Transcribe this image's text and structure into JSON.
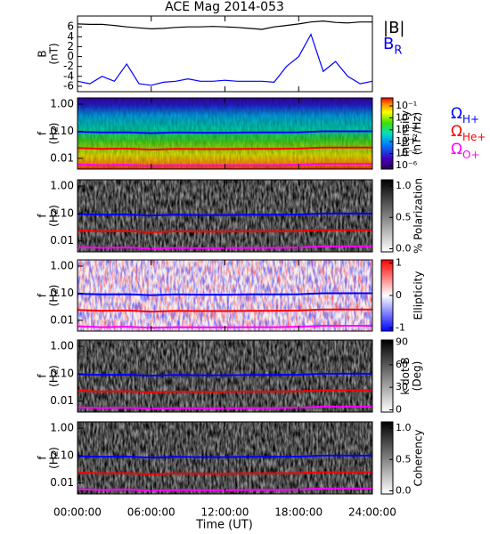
{
  "chart_data": [
    {
      "type": "line",
      "title": "ACE Mag 2014-053",
      "y_label": [
        "B",
        "(nT)"
      ],
      "ylim": [
        -7.1,
        8.2
      ],
      "yticks": [
        -6,
        -4,
        -2,
        0,
        2,
        4,
        6
      ],
      "x": [
        0,
        1,
        2,
        3,
        4,
        5,
        6,
        7,
        8,
        9,
        10,
        11,
        12,
        13,
        14,
        15,
        16,
        17,
        18,
        19,
        20,
        21,
        22,
        23,
        24
      ],
      "series": [
        {
          "name": "|B|",
          "color": "#000000",
          "values": [
            6.6,
            6.5,
            6.5,
            6.3,
            6.0,
            5.8,
            5.6,
            5.7,
            5.9,
            6.0,
            6.0,
            6.1,
            6.0,
            5.9,
            5.7,
            5.5,
            6.0,
            6.3,
            6.6,
            7.0,
            7.2,
            6.9,
            6.8,
            7.0,
            7.0
          ]
        },
        {
          "name": "B",
          "subscript": "R",
          "color": "#0000ff",
          "values": [
            -5,
            -5.5,
            -4,
            -5,
            -1.5,
            -5.5,
            -5.8,
            -5.2,
            -5,
            -4.5,
            -5,
            -5,
            -4.8,
            -5,
            -5,
            -5,
            -5.2,
            -2,
            0,
            4.5,
            -3,
            -1,
            -4,
            -5.5,
            -5
          ]
        }
      ]
    },
    {
      "type": "spectrogram",
      "y_label": [
        "f",
        "(Hz)"
      ],
      "log_y": true,
      "ylim": [
        0.004,
        1.7
      ],
      "yticks": [
        {
          "value": 1,
          "label": "1.00"
        },
        {
          "value": 0.1,
          "label": "0.10"
        },
        {
          "value": 0.01,
          "label": "0.01"
        }
      ],
      "colorbar": {
        "label": [
          "Intensity",
          "(nT²/Hz)"
        ],
        "colormap": "rainbow",
        "log": true,
        "lim": [
          5e-07,
          0.47
        ],
        "ticks": [
          {
            "value": 0.1,
            "label": "10⁻¹"
          },
          {
            "value": 0.01,
            "label": "10⁻²"
          },
          {
            "value": 0.001,
            "label": "10⁻³"
          },
          {
            "value": 0.0001,
            "label": "10⁻⁴"
          },
          {
            "value": 1e-05,
            "label": "10⁻⁵"
          },
          {
            "value": 1e-06,
            "label": "10⁻⁶"
          }
        ]
      },
      "x": [
        0,
        2,
        4,
        6,
        8,
        10,
        12,
        14,
        16,
        18,
        20,
        22,
        24
      ],
      "series": [
        {
          "name": "Ω",
          "subscript": "H+",
          "color": "#0000ff",
          "values": [
            0.095,
            0.09,
            0.092,
            0.085,
            0.09,
            0.088,
            0.088,
            0.09,
            0.09,
            0.092,
            0.1,
            0.1,
            0.1
          ]
        },
        {
          "name": "Ω",
          "subscript": "He+",
          "color": "#ff0000",
          "values": [
            0.024,
            0.0225,
            0.023,
            0.021,
            0.0225,
            0.022,
            0.022,
            0.0225,
            0.0225,
            0.023,
            0.025,
            0.025,
            0.025
          ]
        },
        {
          "name": "Ω",
          "subscript": "O+",
          "color": "#ff00ff",
          "values": [
            0.006,
            0.0056,
            0.0058,
            0.0053,
            0.0056,
            0.0055,
            0.0055,
            0.0056,
            0.0056,
            0.0058,
            0.0063,
            0.0063,
            0.0063
          ]
        }
      ]
    },
    {
      "type": "spectrogram",
      "y_label": [
        "f",
        "(Hz)"
      ],
      "log_y": true,
      "ylim": [
        0.004,
        1.7
      ],
      "yticks": [
        {
          "value": 1,
          "label": "1.00"
        },
        {
          "value": 0.1,
          "label": "0.10"
        },
        {
          "value": 0.01,
          "label": "0.01"
        }
      ],
      "colorbar": {
        "label": [
          "% Polarization"
        ],
        "colormap": "gray",
        "log": false,
        "lim": [
          -0.05,
          1.1
        ],
        "ticks": [
          {
            "value": 0,
            "label": "0.0"
          },
          {
            "value": 0.5,
            "label": "0.5"
          },
          {
            "value": 1,
            "label": "1.0"
          }
        ]
      },
      "x": [
        0,
        2,
        4,
        6,
        8,
        10,
        12,
        14,
        16,
        18,
        20,
        22,
        24
      ],
      "series": [
        {
          "color": "#0000ff",
          "values": [
            0.095,
            0.09,
            0.092,
            0.085,
            0.09,
            0.088,
            0.088,
            0.09,
            0.09,
            0.092,
            0.1,
            0.1,
            0.1
          ]
        },
        {
          "color": "#ff0000",
          "values": [
            0.024,
            0.0225,
            0.023,
            0.021,
            0.0225,
            0.022,
            0.022,
            0.0225,
            0.0225,
            0.023,
            0.025,
            0.025,
            0.025
          ]
        },
        {
          "color": "#ff00ff",
          "values": [
            0.006,
            0.0056,
            0.0058,
            0.0053,
            0.0056,
            0.0055,
            0.0055,
            0.0056,
            0.0056,
            0.0058,
            0.0063,
            0.0063,
            0.0063
          ]
        }
      ]
    },
    {
      "type": "spectrogram",
      "y_label": [
        "f",
        "(Hz)"
      ],
      "log_y": true,
      "ylim": [
        0.004,
        1.7
      ],
      "yticks": [
        {
          "value": 1,
          "label": "1.00"
        },
        {
          "value": 0.1,
          "label": "0.10"
        },
        {
          "value": 0.01,
          "label": "0.01"
        }
      ],
      "colorbar": {
        "label": [
          "Ellipticity"
        ],
        "colormap": "bwr",
        "log": false,
        "lim": [
          -1.1,
          1.1
        ],
        "ticks": [
          1,
          0,
          -1
        ]
      },
      "x": [
        0,
        2,
        4,
        6,
        8,
        10,
        12,
        14,
        16,
        18,
        20,
        22,
        24
      ],
      "series": [
        {
          "color": "#0000ff",
          "values": [
            0.095,
            0.09,
            0.092,
            0.085,
            0.09,
            0.088,
            0.088,
            0.09,
            0.09,
            0.092,
            0.1,
            0.1,
            0.1
          ]
        },
        {
          "color": "#ff0000",
          "values": [
            0.024,
            0.0225,
            0.023,
            0.021,
            0.0225,
            0.022,
            0.022,
            0.0225,
            0.0225,
            0.023,
            0.025,
            0.025,
            0.025
          ]
        },
        {
          "color": "#ff00ff",
          "values": [
            0.006,
            0.0056,
            0.0058,
            0.0053,
            0.0056,
            0.0055,
            0.0055,
            0.0056,
            0.0056,
            0.0058,
            0.0063,
            0.0063,
            0.0063
          ]
        }
      ]
    },
    {
      "type": "spectrogram",
      "y_label": [
        "f",
        "(Hz)"
      ],
      "log_y": true,
      "ylim": [
        0.004,
        1.7
      ],
      "yticks": [
        {
          "value": 1,
          "label": "1.00"
        },
        {
          "value": 0.1,
          "label": "0.10"
        },
        {
          "value": 0.01,
          "label": "0.01"
        }
      ],
      "colorbar": {
        "label": [
          "k dot B",
          "(Deg)"
        ],
        "colormap": "gray",
        "log": false,
        "lim": [
          -3,
          93
        ],
        "ticks": [
          90,
          60,
          30,
          0
        ]
      },
      "x": [
        0,
        2,
        4,
        6,
        8,
        10,
        12,
        14,
        16,
        18,
        20,
        22,
        24
      ],
      "series": [
        {
          "color": "#0000ff",
          "values": [
            0.095,
            0.09,
            0.092,
            0.085,
            0.09,
            0.088,
            0.088,
            0.09,
            0.09,
            0.092,
            0.1,
            0.1,
            0.1
          ]
        },
        {
          "color": "#ff0000",
          "values": [
            0.024,
            0.0225,
            0.023,
            0.021,
            0.0225,
            0.022,
            0.022,
            0.0225,
            0.0225,
            0.023,
            0.025,
            0.025,
            0.025
          ]
        },
        {
          "color": "#ff00ff",
          "values": [
            0.006,
            0.0056,
            0.0058,
            0.0053,
            0.0056,
            0.0055,
            0.0055,
            0.0056,
            0.0056,
            0.0058,
            0.0063,
            0.0063,
            0.0063
          ]
        }
      ]
    },
    {
      "type": "spectrogram",
      "y_label": [
        "f",
        "(Hz)"
      ],
      "log_y": true,
      "ylim": [
        0.004,
        1.7
      ],
      "yticks": [
        {
          "value": 1,
          "label": "1.00"
        },
        {
          "value": 0.1,
          "label": "0.10"
        },
        {
          "value": 0.01,
          "label": "0.01"
        }
      ],
      "colorbar": {
        "label": [
          "Coherency"
        ],
        "colormap": "gray",
        "log": false,
        "lim": [
          -0.05,
          1.1
        ],
        "ticks": [
          {
            "value": 0,
            "label": "0.0"
          },
          {
            "value": 0.5,
            "label": "0.5"
          },
          {
            "value": 1,
            "label": "1.0"
          }
        ]
      },
      "x": [
        0,
        2,
        4,
        6,
        8,
        10,
        12,
        14,
        16,
        18,
        20,
        22,
        24
      ],
      "series": [
        {
          "color": "#0000ff",
          "values": [
            0.095,
            0.09,
            0.092,
            0.085,
            0.09,
            0.088,
            0.088,
            0.09,
            0.09,
            0.092,
            0.1,
            0.1,
            0.1
          ]
        },
        {
          "color": "#ff0000",
          "values": [
            0.024,
            0.0225,
            0.023,
            0.021,
            0.0225,
            0.022,
            0.022,
            0.0225,
            0.0225,
            0.023,
            0.025,
            0.025,
            0.025
          ]
        },
        {
          "color": "#ff00ff",
          "values": [
            0.006,
            0.0056,
            0.0058,
            0.0053,
            0.0056,
            0.0055,
            0.0055,
            0.0056,
            0.0056,
            0.0058,
            0.0063,
            0.0063,
            0.0063
          ]
        }
      ],
      "x_label": "Time (UT)",
      "xlim": [
        0,
        24
      ],
      "xticks": [
        {
          "value": 0,
          "label": "00:00:00"
        },
        {
          "value": 6,
          "label": "06:00:00"
        },
        {
          "value": 12,
          "label": "12:00:00"
        },
        {
          "value": 18,
          "label": "18:00:00"
        },
        {
          "value": 24,
          "label": "24:00:00"
        }
      ]
    }
  ]
}
